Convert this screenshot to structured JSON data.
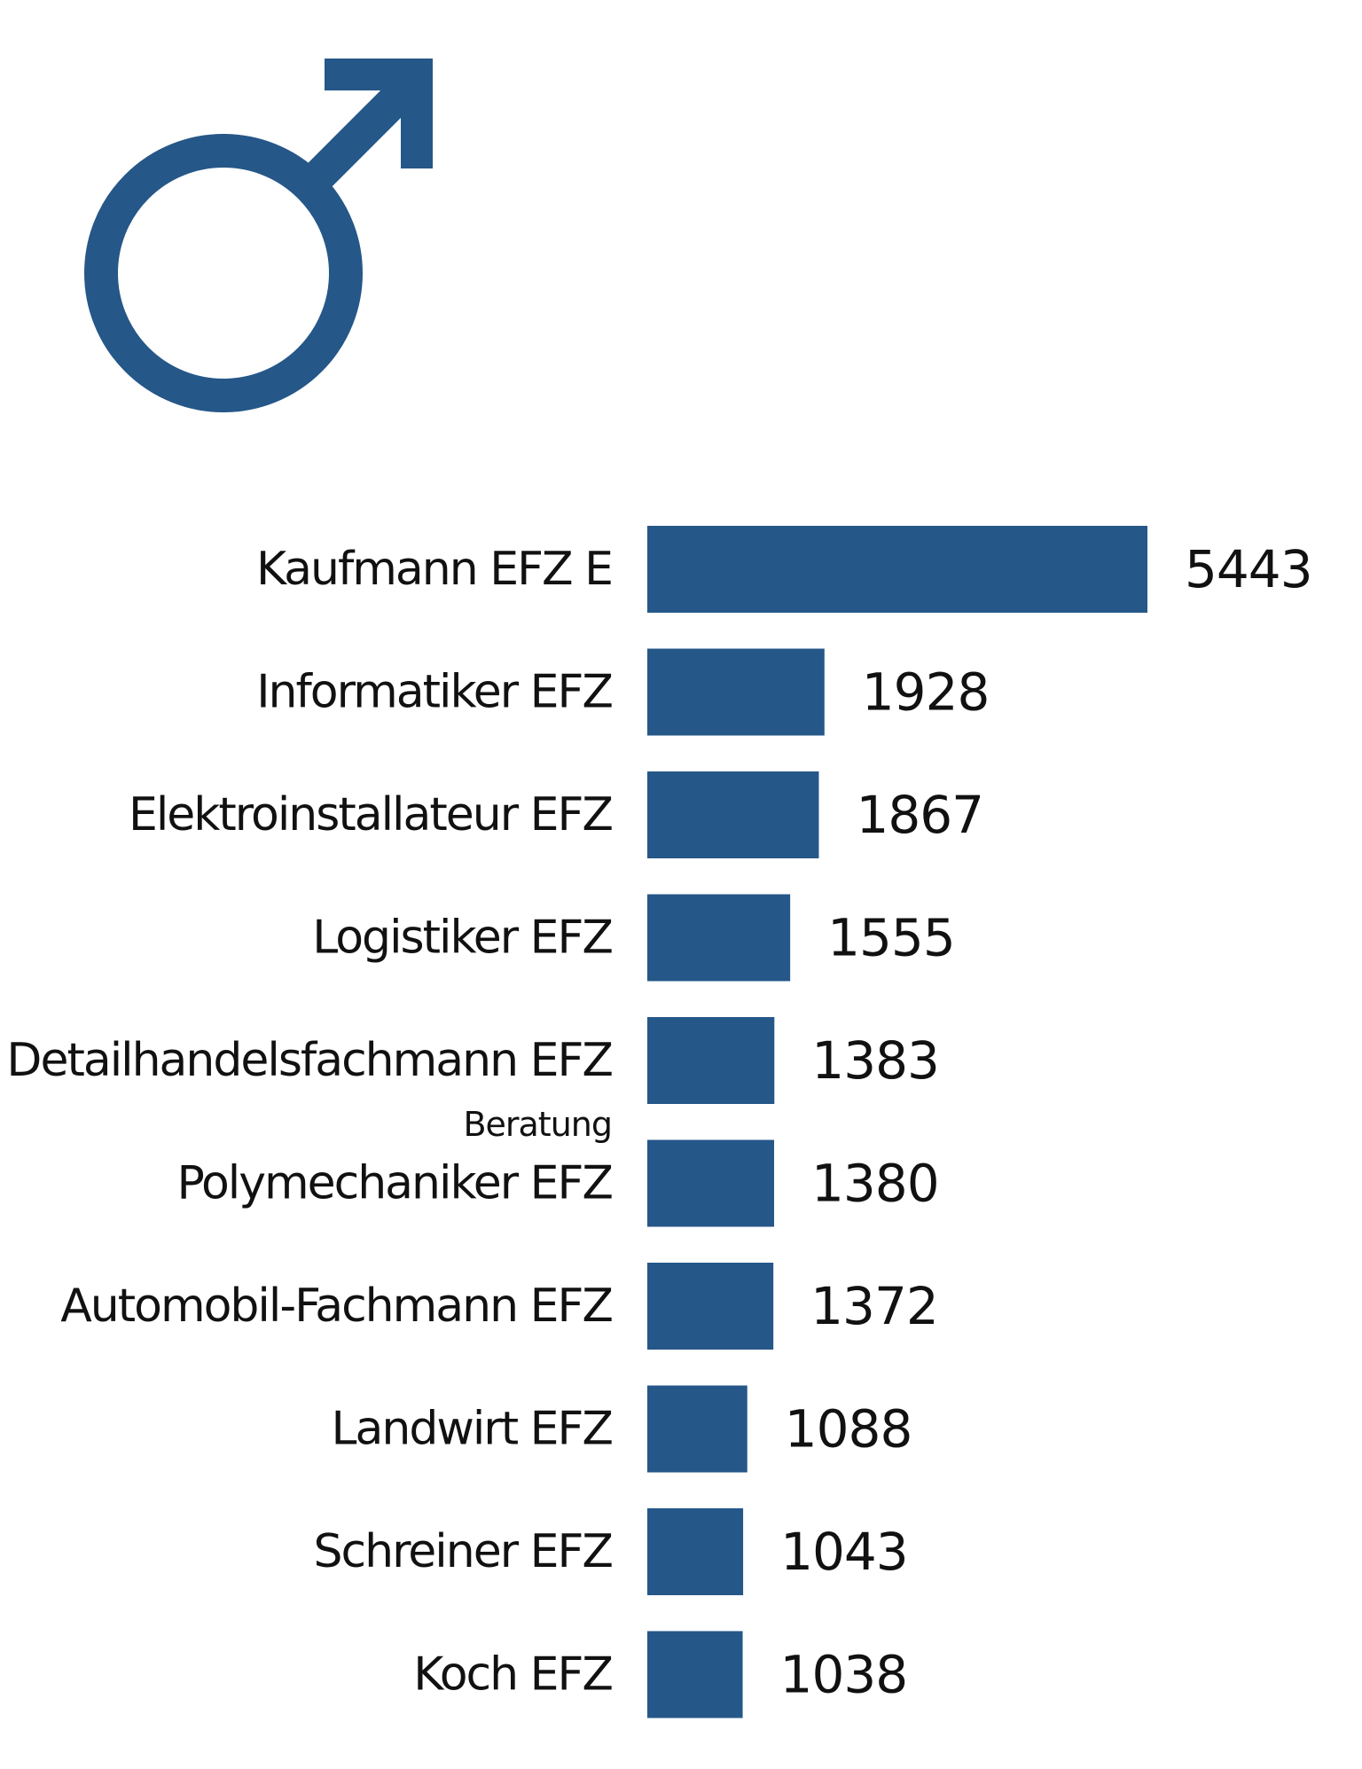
{
  "colors": {
    "bar": "#255788",
    "symbol": "#255788",
    "text": "#111111"
  },
  "icon": "male-symbol-icon",
  "chart_data": {
    "type": "bar",
    "orientation": "horizontal",
    "categories": [
      "Kaufmann EFZ E",
      "Informatiker EFZ",
      "Elektroinstallateur EFZ",
      "Logistiker EFZ",
      "Detailhandelsfachmann EFZ",
      "Polymechaniker EFZ",
      "Automobil-Fachmann EFZ",
      "Landwirt EFZ",
      "Schreiner EFZ",
      "Koch EFZ"
    ],
    "sublabels": [
      "",
      "",
      "",
      "",
      "Beratung",
      "",
      "",
      "",
      "",
      ""
    ],
    "values": [
      5443,
      1928,
      1867,
      1555,
      1383,
      1380,
      1372,
      1088,
      1043,
      1038
    ],
    "title": "",
    "xlabel": "",
    "ylabel": "",
    "grid": false,
    "data_labels": true
  }
}
